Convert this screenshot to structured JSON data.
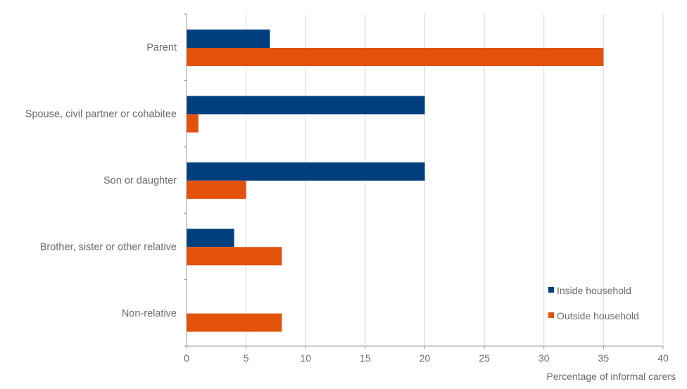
{
  "chart_data": {
    "type": "bar",
    "orientation": "horizontal",
    "categories": [
      "Parent",
      "Spouse, civil partner or cohabitee",
      "Son or daughter",
      "Brother, sister or other relative",
      "Non-relative"
    ],
    "series": [
      {
        "name": "Inside household",
        "color": "#003f7d",
        "values": [
          7,
          20,
          20,
          4,
          0
        ]
      },
      {
        "name": "Outside household",
        "color": "#e2520a",
        "values": [
          35,
          1,
          5,
          8,
          8
        ]
      }
    ],
    "xlabel": "Percentage of informal carers",
    "ylabel": "",
    "title": "",
    "xlim": [
      0,
      40
    ],
    "xticks": [
      0,
      5,
      10,
      15,
      20,
      25,
      30,
      35,
      40
    ],
    "grid": "vertical",
    "legend_position": "bottom-right"
  }
}
